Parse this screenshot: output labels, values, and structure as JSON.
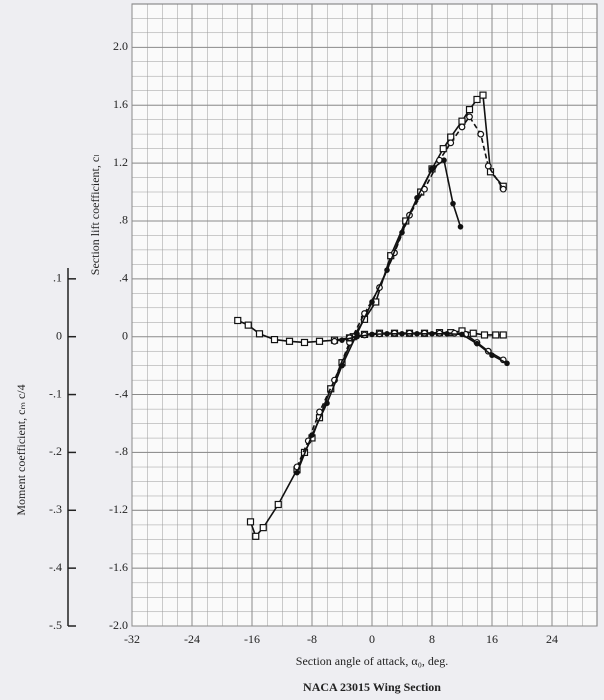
{
  "chart_data": {
    "type": "line",
    "caption": "NACA 23015 Wing Section",
    "x_label": "Section angle of attack, α₀, deg.",
    "y_label": "Section lift coefficient, cₗ",
    "y2_label": "Moment coefficient, cₘ c/4",
    "xlim": [
      -32,
      30
    ],
    "xticks": [
      -32,
      -24,
      -16,
      -8,
      0,
      8,
      16,
      24
    ],
    "ylim": [
      -2.0,
      2.3
    ],
    "yticks": [
      {
        "value": 2.0,
        "label": "2.0"
      },
      1.6,
      1.2,
      {
        "value": 0.8,
        "label": ".8"
      },
      {
        "value": 0.4,
        "label": ".4"
      },
      0,
      {
        "value": -0.4,
        "label": "-.4"
      },
      {
        "value": -0.8,
        "label": "-.8"
      },
      -1.2,
      -1.6,
      {
        "value": -2.0,
        "label": "-2.0"
      }
    ],
    "y2lim": [
      -0.5,
      0.575
    ],
    "y2ticks": [
      {
        "value": 0.1,
        "label": ".1"
      },
      0,
      {
        "value": -0.1,
        "label": "-.1"
      },
      {
        "value": -0.2,
        "label": "-.2"
      },
      {
        "value": -0.3,
        "label": "-.3"
      },
      {
        "value": -0.4,
        "label": "-.4"
      },
      {
        "value": -0.5,
        "label": "-.5"
      }
    ],
    "grid": true,
    "series": [
      {
        "color": "#111",
        "marker": "square",
        "line_style": "solid",
        "x": [
          -16.2,
          -15.5,
          -14.5,
          -12.5,
          -10,
          -9,
          -8,
          -7,
          -5.5,
          -4,
          -2.5,
          -1,
          0.5,
          2.5,
          4.5,
          6.5,
          8,
          9.5,
          10.5,
          12,
          13,
          14,
          14.8,
          15.8,
          17.5
        ],
        "values": [
          -1.28,
          -1.38,
          -1.32,
          -1.16,
          -0.92,
          -0.8,
          -0.7,
          -0.56,
          -0.36,
          -0.18,
          0,
          0.12,
          0.24,
          0.56,
          0.8,
          1.0,
          1.16,
          1.3,
          1.38,
          1.49,
          1.57,
          1.64,
          1.67,
          1.14,
          1.04
        ]
      },
      {
        "color": "#111",
        "marker": "circle",
        "line_style": "dashed",
        "x": [
          -10,
          -8.5,
          -7,
          -5,
          -3,
          -1,
          1,
          3,
          5,
          7,
          9,
          10.5,
          12,
          13,
          14.5,
          15.5,
          17.5
        ],
        "values": [
          -0.9,
          -0.72,
          -0.52,
          -0.3,
          -0.04,
          0.16,
          0.34,
          0.58,
          0.84,
          1.02,
          1.22,
          1.34,
          1.45,
          1.52,
          1.4,
          1.18,
          1.02
        ]
      },
      {
        "color": "#111",
        "marker": "dot",
        "line_style": "solid",
        "x": [
          -10,
          -8,
          -6,
          -4,
          -2,
          0,
          2,
          4,
          6,
          8,
          9.6,
          10.8,
          11.8
        ],
        "values": [
          -0.94,
          -0.68,
          -0.46,
          -0.2,
          0.02,
          0.24,
          0.46,
          0.72,
          0.96,
          1.16,
          1.22,
          0.92,
          0.76
        ]
      },
      {
        "color": "#111",
        "marker": "square",
        "line_style": "solid",
        "axis": "y2",
        "x": [
          -17.9,
          -16.5,
          -15,
          -13,
          -11,
          -9,
          -7,
          -5,
          -3,
          -1,
          1,
          3,
          5,
          7,
          9,
          10.5,
          12,
          13.5,
          15,
          16.5,
          17.5
        ],
        "values": [
          0.028,
          0.02,
          0.005,
          -0.005,
          -0.008,
          -0.01,
          -0.008,
          -0.006,
          -0.002,
          0.004,
          0.006,
          0.006,
          0.006,
          0.006,
          0.007,
          0.007,
          0.01,
          0.006,
          0.003,
          0.003,
          0.003
        ]
      },
      {
        "color": "#111",
        "marker": "circle",
        "line_style": "solid",
        "axis": "y2",
        "x": [
          -5,
          -3,
          -1,
          1,
          3,
          5,
          7,
          9,
          11,
          12.5,
          14,
          15.5,
          17.5
        ],
        "values": [
          -0.008,
          -0.002,
          0.003,
          0.005,
          0.006,
          0.006,
          0.006,
          0.006,
          0.006,
          0.004,
          -0.01,
          -0.025,
          -0.04
        ]
      },
      {
        "color": "#111",
        "marker": "dot",
        "line_style": "solid",
        "axis": "y2",
        "x": [
          -4,
          -2,
          0,
          2,
          4,
          6,
          8,
          10,
          12,
          14,
          16,
          18
        ],
        "values": [
          -0.006,
          0,
          0.004,
          0.005,
          0.005,
          0.005,
          0.005,
          0.005,
          0.004,
          -0.012,
          -0.032,
          -0.046
        ]
      }
    ]
  }
}
